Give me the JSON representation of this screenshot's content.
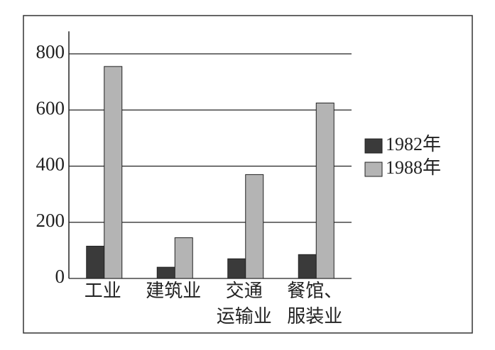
{
  "chart_data": {
    "type": "bar",
    "categories": [
      [
        "工业"
      ],
      [
        "建筑业"
      ],
      [
        "交通",
        "运输业"
      ],
      [
        "餐馆、",
        "服装业"
      ]
    ],
    "series": [
      {
        "name": "1982年",
        "color": "#3a3a3a",
        "values": [
          115,
          40,
          70,
          85
        ]
      },
      {
        "name": "1988年",
        "color": "#b4b4b4",
        "values": [
          755,
          145,
          370,
          625
        ]
      }
    ],
    "ylim": [
      0,
      880
    ],
    "yticks": [
      0,
      200,
      400,
      600,
      800
    ],
    "grid": true,
    "legend": "right"
  }
}
